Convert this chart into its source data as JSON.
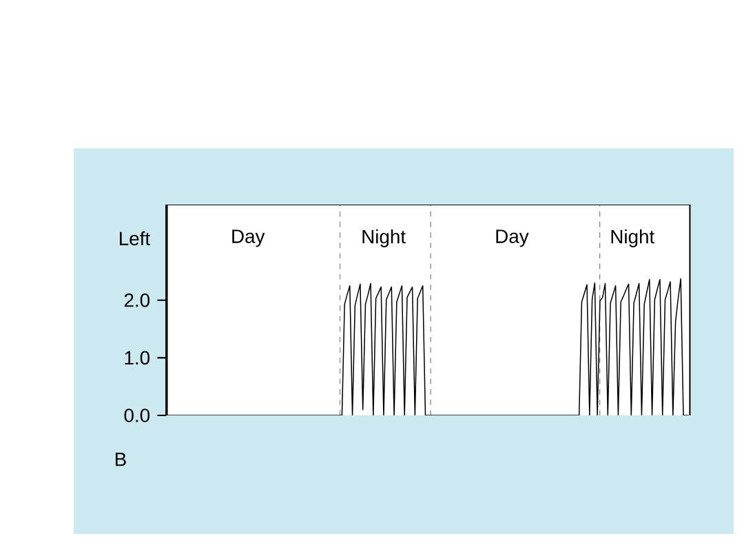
{
  "chart_data": {
    "type": "line",
    "ylabel": "Left",
    "annotations": [
      "Day",
      "Night",
      "Day",
      "Night",
      "B"
    ],
    "categories": [
      null,
      null,
      null,
      null,
      null,
      null,
      null,
      null,
      null,
      null,
      null,
      null,
      null,
      null,
      null,
      null,
      null,
      null,
      null,
      null,
      null,
      null,
      null,
      null,
      null,
      null,
      null,
      null,
      null,
      null,
      null,
      null,
      null,
      null,
      null,
      null,
      null,
      null,
      null,
      null,
      null,
      null,
      null,
      null,
      null,
      null,
      null,
      null,
      null,
      null,
      null,
      null,
      null,
      null,
      null,
      null,
      null,
      null,
      null,
      null,
      null,
      null,
      null,
      null,
      null,
      null,
      null,
      null,
      null,
      null,
      null,
      null,
      null,
      null,
      null,
      null,
      null,
      null,
      null,
      null,
      null,
      null,
      null,
      null,
      null,
      null,
      null,
      null,
      null,
      null,
      null,
      null,
      null,
      null,
      null,
      null,
      null,
      null,
      null,
      null,
      null,
      null,
      null,
      null,
      null,
      null,
      null,
      null,
      null,
      null,
      null,
      null,
      null,
      null,
      null,
      null,
      null,
      null,
      null,
      null,
      null,
      null,
      null,
      null,
      null,
      null,
      null,
      null,
      null,
      null,
      null,
      null,
      null,
      null,
      null,
      null,
      null,
      null,
      null,
      null,
      null,
      null,
      null,
      null,
      null,
      null,
      null,
      null,
      null,
      null,
      null,
      null,
      null,
      null,
      null,
      null,
      null,
      null,
      null,
      null,
      null,
      null,
      null,
      null,
      null,
      null,
      null,
      null,
      null,
      null,
      null,
      null,
      null,
      null,
      null,
      null,
      null,
      null,
      null,
      null,
      null,
      null,
      null,
      null,
      null,
      null,
      null,
      null,
      null,
      null,
      null,
      null,
      null,
      null,
      null,
      null,
      null,
      null,
      null,
      null,
      null
    ],
    "values": [
      0,
      0,
      0,
      0,
      0,
      0,
      0,
      0,
      0,
      0,
      0,
      0,
      0,
      0,
      0,
      0,
      0,
      0,
      0,
      0,
      0,
      0,
      0,
      0,
      0,
      0,
      0,
      0,
      0,
      0,
      0,
      0,
      0,
      0,
      0,
      0,
      0,
      0,
      0,
      0,
      0,
      0,
      0,
      0,
      0,
      0,
      0,
      0,
      0,
      0,
      0,
      0,
      0,
      0,
      0,
      0,
      0,
      0,
      0,
      0,
      0,
      0,
      0,
      0,
      0,
      0,
      0,
      0,
      1.93,
      2.1,
      2.25,
      0,
      1.91,
      2.1,
      2.28,
      0.1,
      1.93,
      2.1,
      2.29,
      0,
      2.03,
      2.13,
      2.23,
      0,
      2.01,
      2.12,
      2.23,
      0,
      1.97,
      2.11,
      2.25,
      0,
      2.05,
      2.14,
      2.23,
      0,
      2.03,
      2.14,
      2.25,
      0,
      0,
      0,
      0,
      0,
      0,
      0,
      0,
      0,
      0,
      0,
      0,
      0,
      0,
      0,
      0,
      0,
      0,
      0,
      0,
      0,
      0,
      0,
      0,
      0,
      0,
      0,
      0,
      0,
      0,
      0,
      0,
      0,
      0,
      0,
      0,
      0,
      0,
      0,
      0,
      0,
      0,
      0,
      0,
      0,
      0,
      0,
      0,
      0,
      0,
      0,
      0,
      0,
      0,
      0,
      0,
      0,
      0,
      0,
      0,
      1.97,
      2.12,
      2.27,
      0,
      2.01,
      2.3,
      0,
      1.99,
      2.05,
      2.29,
      0,
      1.95,
      2.1,
      2.25,
      0,
      1.97,
      2.07,
      2.18,
      2.28,
      0,
      1.95,
      2.12,
      2.29,
      0,
      1.93,
      2.15,
      2.36,
      0,
      2.01,
      2.19,
      2.36,
      0,
      2.01,
      2.16,
      2.32,
      0,
      1.63,
      2.03,
      2.37,
      0,
      0,
      0
    ],
    "color": "#000000",
    "marker": "none",
    "line_style": "solid",
    "ylim": [
      0,
      3.66
    ],
    "yticks": [
      {
        "value": 0,
        "label": "0.0"
      },
      {
        "value": 1,
        "label": "1.0"
      },
      {
        "value": 2,
        "label": "2.0"
      }
    ],
    "tick_labels": "y",
    "grid": false
  }
}
